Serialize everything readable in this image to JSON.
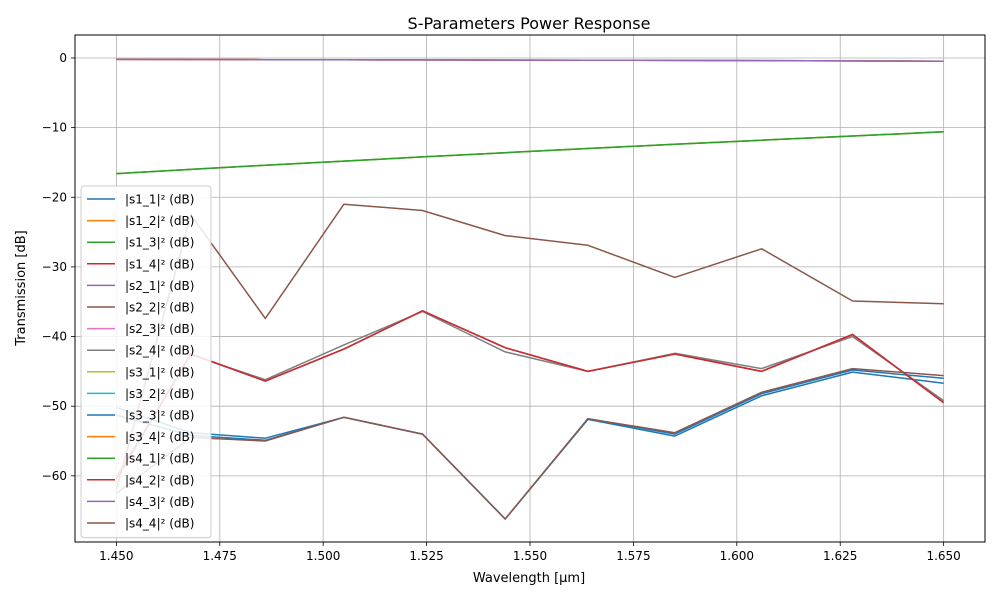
{
  "chart_data": {
    "type": "line",
    "title": "S-Parameters Power Response",
    "xlabel": "Wavelength [µm]",
    "ylabel": "Transmission [dB]",
    "xlim": [
      1.44,
      1.66
    ],
    "ylim": [
      -69.5,
      3.3
    ],
    "xticks": [
      "1.450",
      "1.475",
      "1.500",
      "1.525",
      "1.550",
      "1.575",
      "1.600",
      "1.625",
      "1.650"
    ],
    "xtick_values": [
      1.45,
      1.475,
      1.5,
      1.525,
      1.55,
      1.575,
      1.6,
      1.625,
      1.65
    ],
    "yticks": [
      "0",
      "−10",
      "−20",
      "−30",
      "−40",
      "−50",
      "−60"
    ],
    "ytick_values": [
      0,
      -10,
      -20,
      -30,
      -40,
      -50,
      -60
    ],
    "grid": true,
    "legend_position": "lower-left",
    "x": [
      1.45,
      1.468,
      1.486,
      1.505,
      1.524,
      1.544,
      1.564,
      1.585,
      1.606,
      1.628,
      1.65
    ],
    "series": [
      {
        "name": "|s1_1|² (dB)",
        "color": "#1f77b4",
        "values": [
          -50.2,
          -53.8,
          -54.6,
          -51.6,
          -54.0,
          -66.2,
          -51.9,
          -54.3,
          -48.5,
          -45.1,
          -46.7
        ]
      },
      {
        "name": "|s1_2|² (dB)",
        "color": "#ff7f0e",
        "values": [
          -0.2,
          -0.22,
          -0.24,
          -0.26,
          -0.28,
          -0.3,
          -0.32,
          -0.35,
          -0.38,
          -0.42,
          -0.48
        ]
      },
      {
        "name": "|s1_3|² (dB)",
        "color": "#2ca02c",
        "values": [
          -16.6,
          -16.0,
          -15.4,
          -14.8,
          -14.2,
          -13.6,
          -13.0,
          -12.4,
          -11.8,
          -11.2,
          -10.6
        ]
      },
      {
        "name": "|s1_4|² (dB)",
        "color": "#d62728",
        "values": [
          -60.5,
          -42.5,
          -46.4,
          -41.8,
          -36.3,
          -41.6,
          -45.0,
          -42.5,
          -45.0,
          -39.7,
          -49.5
        ]
      },
      {
        "name": "|s2_1|² (dB)",
        "color": "#9467bd",
        "values": [
          -0.2,
          -0.22,
          -0.24,
          -0.26,
          -0.28,
          -0.3,
          -0.32,
          -0.35,
          -0.38,
          -0.42,
          -0.48
        ]
      },
      {
        "name": "|s2_2|² (dB)",
        "color": "#8c564b",
        "values": [
          -62.0,
          -22.5,
          -37.4,
          -21.0,
          -21.9,
          -25.5,
          -26.9,
          -31.5,
          -27.4,
          -34.9,
          -35.3
        ]
      },
      {
        "name": "|s2_3|² (dB)",
        "color": "#e377c2",
        "values": [
          -60.5,
          -42.5,
          -46.4,
          -41.8,
          -36.3,
          -41.6,
          -45.0,
          -42.5,
          -45.0,
          -39.7,
          -49.5
        ]
      },
      {
        "name": "|s2_4|² (dB)",
        "color": "#7f7f7f",
        "values": [
          -60.2,
          -42.6,
          -46.2,
          -41.2,
          -36.4,
          -42.2,
          -45.0,
          -42.4,
          -44.6,
          -40.0,
          -49.2
        ]
      },
      {
        "name": "|s3_1|² (dB)",
        "color": "#bcbd22",
        "values": [
          -16.6,
          -16.0,
          -15.4,
          -14.8,
          -14.2,
          -13.6,
          -13.0,
          -12.4,
          -11.8,
          -11.2,
          -10.6
        ]
      },
      {
        "name": "|s3_2|² (dB)",
        "color": "#17becf",
        "values": [
          -60.5,
          -42.5,
          -46.4,
          -41.8,
          -36.3,
          -41.6,
          -45.0,
          -42.5,
          -45.0,
          -39.7,
          -49.5
        ]
      },
      {
        "name": "|s3_3|² (dB)",
        "color": "#1f77b4",
        "values": [
          -51.3,
          -54.2,
          -54.9,
          -51.6,
          -54.0,
          -66.2,
          -51.8,
          -54.0,
          -48.2,
          -44.8,
          -46.0
        ]
      },
      {
        "name": "|s3_4|² (dB)",
        "color": "#ff7f0e",
        "values": [
          -0.2,
          -0.22,
          -0.24,
          -0.26,
          -0.28,
          -0.3,
          -0.32,
          -0.35,
          -0.38,
          -0.42,
          -0.48
        ]
      },
      {
        "name": "|s4_1|² (dB)",
        "color": "#2ca02c",
        "values": [
          -16.6,
          -16.0,
          -15.4,
          -14.8,
          -14.2,
          -13.6,
          -13.0,
          -12.4,
          -11.8,
          -11.2,
          -10.6
        ]
      },
      {
        "name": "|s4_2|² (dB)",
        "color": "#d62728",
        "values": [
          -60.5,
          -42.5,
          -46.4,
          -41.8,
          -36.3,
          -41.6,
          -45.0,
          -42.5,
          -45.0,
          -39.7,
          -49.5
        ]
      },
      {
        "name": "|s4_3|² (dB)",
        "color": "#9467bd",
        "values": [
          -0.2,
          -0.22,
          -0.24,
          -0.26,
          -0.28,
          -0.3,
          -0.32,
          -0.35,
          -0.38,
          -0.42,
          -0.48
        ]
      },
      {
        "name": "|s4_4|² (dB)",
        "color": "#8c564b",
        "values": [
          -62.5,
          -54.5,
          -55.0,
          -51.6,
          -54.0,
          -66.2,
          -51.8,
          -53.8,
          -48.0,
          -44.6,
          -45.6
        ]
      }
    ]
  }
}
